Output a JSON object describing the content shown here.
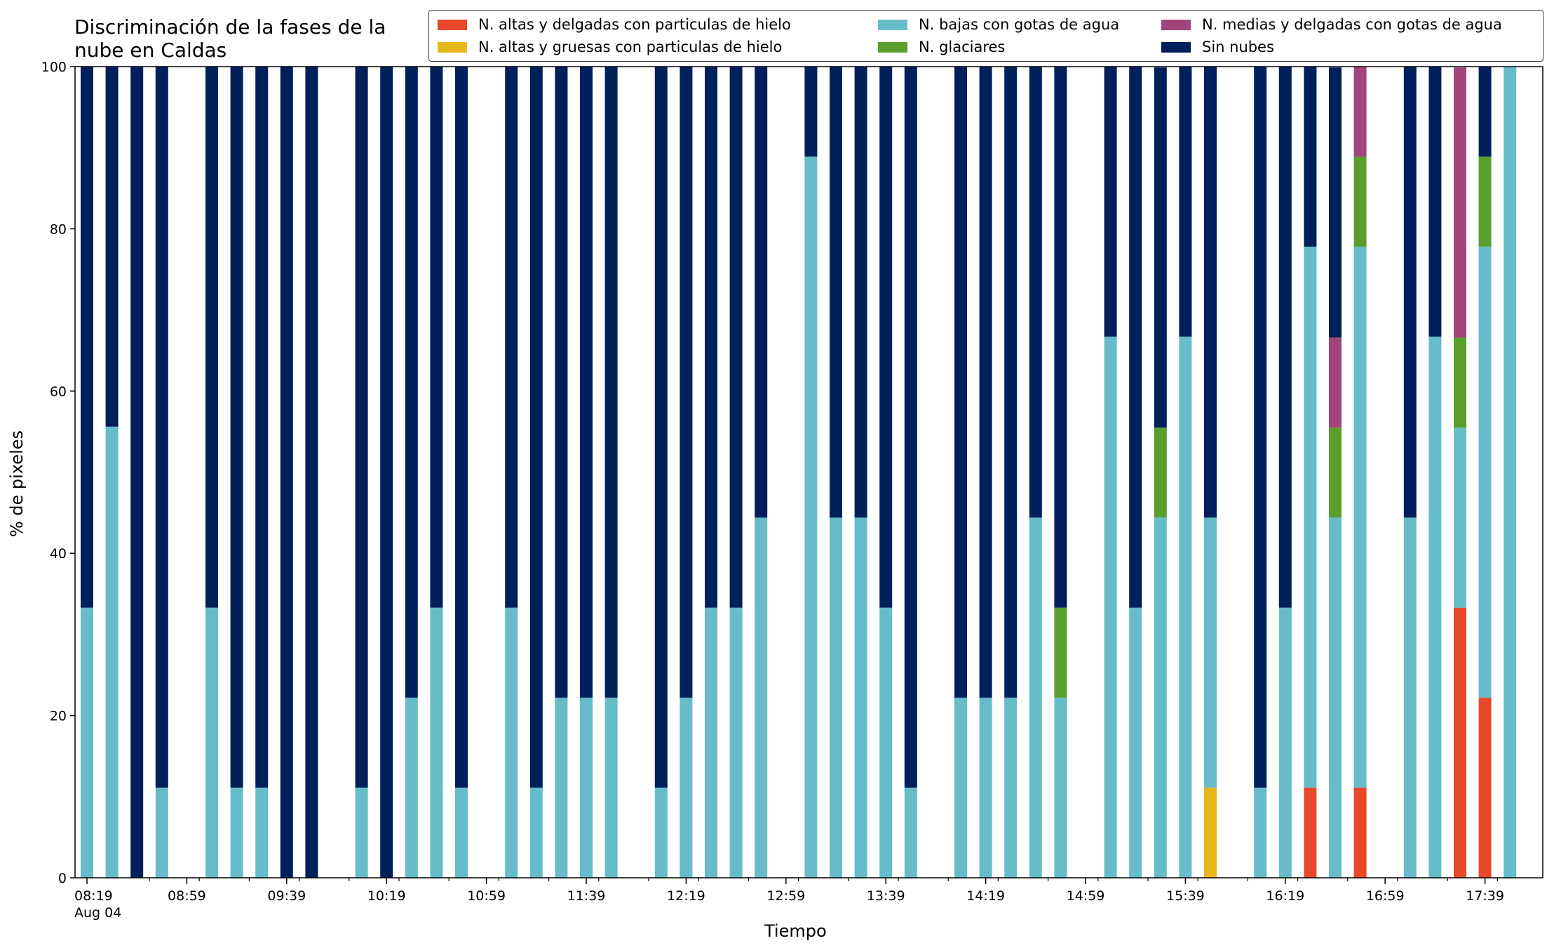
{
  "chart_data": {
    "type": "bar",
    "stacked": true,
    "title": "Discriminación de la fases de la\nnube en Caldas",
    "xlabel": "Tiempo",
    "ylabel": "% de pixeles",
    "ylim": [
      0,
      100
    ],
    "yticks": [
      "0",
      "20",
      "40",
      "60",
      "80",
      "100"
    ],
    "xtick_labels": [
      "08:19\nAug 04",
      "08:59",
      "09:39",
      "10:19",
      "10:59",
      "11:39",
      "12:19",
      "12:59",
      "13:39",
      "14:19",
      "14:59",
      "15:39",
      "16:19",
      "16:59",
      "17:39"
    ],
    "legend_position": "top-right",
    "grid": false,
    "categories": [
      "08:19",
      "08:29",
      "08:39",
      "08:49",
      "08:59",
      "09:09",
      "09:19",
      "09:29",
      "09:39",
      "09:49",
      "09:59",
      "10:09",
      "10:19",
      "10:29",
      "10:39",
      "10:49",
      "10:59",
      "11:09",
      "11:19",
      "11:29",
      "11:39",
      "11:49",
      "11:59",
      "12:09",
      "12:19",
      "12:29",
      "12:39",
      "12:49",
      "12:59",
      "13:09",
      "13:19",
      "13:29",
      "13:39",
      "13:49",
      "13:59",
      "14:09",
      "14:19",
      "14:29",
      "14:39",
      "14:49",
      "14:59",
      "15:09",
      "15:19",
      "15:29",
      "15:39",
      "15:49",
      "15:59",
      "16:09",
      "16:19",
      "16:29",
      "16:39",
      "16:49",
      "16:59",
      "17:09",
      "17:19",
      "17:29",
      "17:39",
      "17:49"
    ],
    "series": [
      {
        "name": "N. altas y delgadas con particulas de hielo",
        "color": "#E8482A",
        "values": [
          0,
          0,
          0,
          0,
          0,
          0,
          0,
          0,
          0,
          0,
          0,
          0,
          0,
          0,
          0,
          0,
          0,
          0,
          0,
          0,
          0,
          0,
          0,
          0,
          0,
          0,
          0,
          0,
          0,
          0,
          0,
          0,
          0,
          0,
          0,
          0,
          0,
          0,
          0,
          0,
          0,
          0,
          0,
          0,
          0,
          0,
          0,
          0,
          0,
          11.1,
          0,
          11.1,
          0,
          0,
          0,
          33.3,
          22.2,
          0
        ]
      },
      {
        "name": "N. altas y gruesas con particulas de hielo",
        "color": "#E8B81A",
        "values": [
          0,
          0,
          0,
          0,
          0,
          0,
          0,
          0,
          0,
          0,
          0,
          0,
          0,
          0,
          0,
          0,
          0,
          0,
          0,
          0,
          0,
          0,
          0,
          0,
          0,
          0,
          0,
          0,
          0,
          0,
          0,
          0,
          0,
          0,
          0,
          0,
          0,
          0,
          0,
          0,
          0,
          0,
          0,
          0,
          0,
          11.1,
          0,
          0,
          0,
          0,
          0,
          0,
          0,
          0,
          0,
          0,
          0,
          0
        ]
      },
      {
        "name": "N. bajas con gotas de agua",
        "color": "#66BCC9",
        "values": [
          33.3,
          55.6,
          0,
          11.1,
          0,
          33.3,
          11.1,
          11.1,
          0,
          0,
          0,
          11.1,
          0,
          22.2,
          33.3,
          11.1,
          0,
          33.3,
          11.1,
          22.2,
          22.2,
          22.2,
          0,
          11.1,
          22.2,
          33.3,
          33.3,
          44.4,
          0,
          88.9,
          44.4,
          44.4,
          33.3,
          11.1,
          0,
          22.2,
          22.2,
          22.2,
          44.4,
          22.2,
          0,
          66.7,
          33.3,
          44.4,
          66.7,
          33.3,
          0,
          11.1,
          33.3,
          66.7,
          44.4,
          66.7,
          0,
          44.4,
          66.7,
          22.2,
          55.6,
          100
        ]
      },
      {
        "name": "N. glaciares",
        "color": "#5A9E2E",
        "values": [
          0,
          0,
          0,
          0,
          0,
          0,
          0,
          0,
          0,
          0,
          0,
          0,
          0,
          0,
          0,
          0,
          0,
          0,
          0,
          0,
          0,
          0,
          0,
          0,
          0,
          0,
          0,
          0,
          0,
          0,
          0,
          0,
          0,
          0,
          0,
          0,
          0,
          0,
          0,
          11.1,
          0,
          0,
          0,
          11.1,
          0,
          0,
          0,
          0,
          0,
          0,
          11.1,
          11.1,
          0,
          0,
          0,
          11.1,
          11.1,
          0
        ]
      },
      {
        "name": "N. medias y delgadas con gotas de agua",
        "color": "#A2457A",
        "values": [
          0,
          0,
          0,
          0,
          0,
          0,
          0,
          0,
          0,
          0,
          0,
          0,
          0,
          0,
          0,
          0,
          0,
          0,
          0,
          0,
          0,
          0,
          0,
          0,
          0,
          0,
          0,
          0,
          0,
          0,
          0,
          0,
          0,
          0,
          0,
          0,
          0,
          0,
          0,
          0,
          0,
          0,
          0,
          0,
          0,
          0,
          0,
          0,
          0,
          0,
          11.1,
          11.1,
          0,
          0,
          0,
          33.3,
          0,
          0
        ]
      },
      {
        "name": "Sin nubes",
        "color": "#00205B",
        "values": [
          66.7,
          44.4,
          100,
          88.9,
          0,
          66.7,
          88.9,
          88.9,
          100,
          100,
          0,
          88.9,
          100,
          77.8,
          66.7,
          88.9,
          0,
          66.7,
          88.9,
          77.8,
          77.8,
          77.8,
          0,
          88.9,
          77.8,
          66.7,
          66.7,
          55.6,
          0,
          11.1,
          55.6,
          55.6,
          66.7,
          88.9,
          0,
          77.8,
          77.8,
          77.8,
          55.6,
          66.7,
          0,
          33.3,
          66.7,
          44.4,
          33.3,
          55.6,
          0,
          88.9,
          66.7,
          22.2,
          33.3,
          0,
          0,
          55.6,
          33.3,
          0,
          11.1,
          0
        ]
      }
    ]
  }
}
